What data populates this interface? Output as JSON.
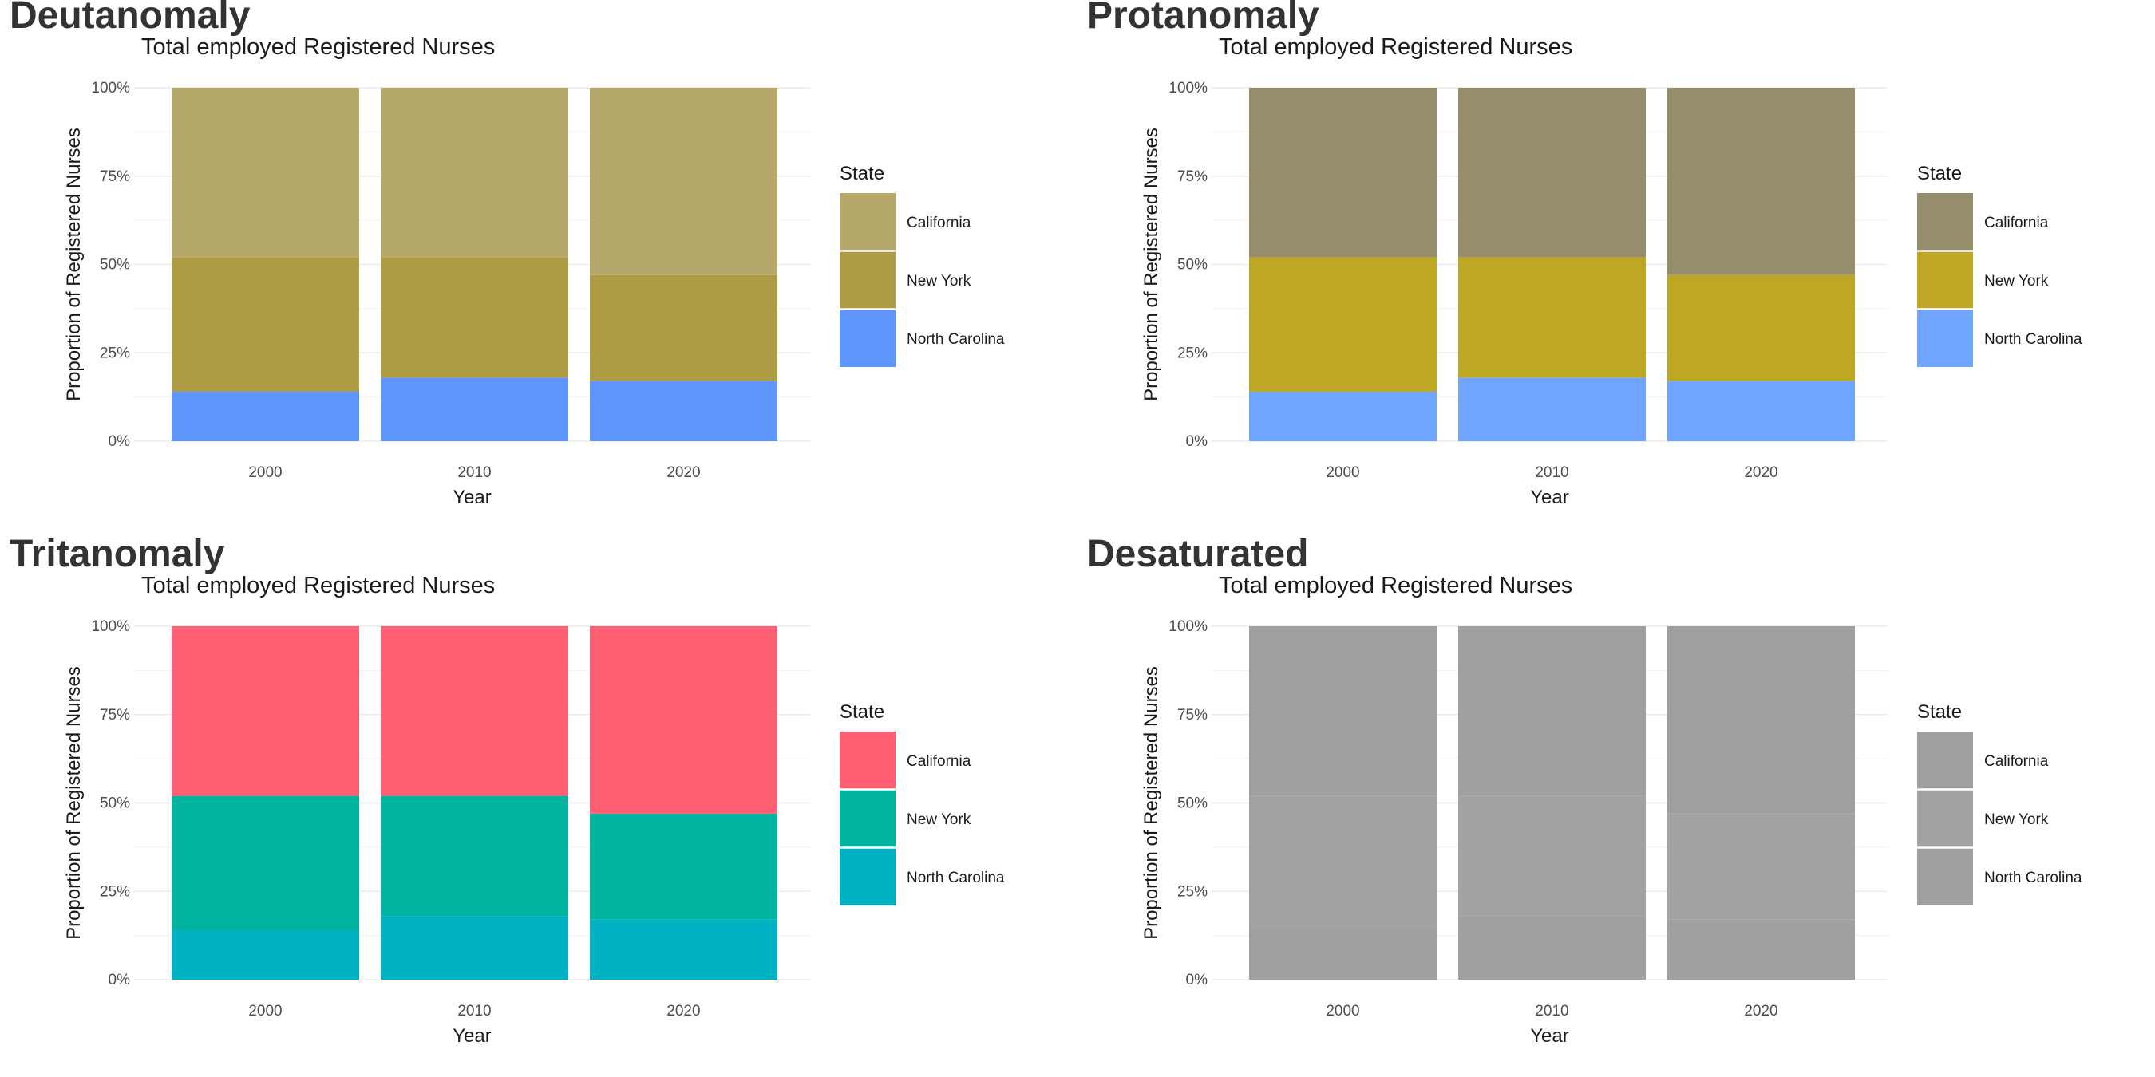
{
  "panels": [
    {
      "heading": "Deutanomaly",
      "colors": {
        "California": "#b6a76b",
        "New York": "#ae9c44",
        "North Carolina": "#5f96fd"
      },
      "chart_data": {
        "type": "bar",
        "title": "Total employed Registered Nurses",
        "xlabel": "Year",
        "ylabel": "Proportion of Registered Nurses",
        "categories": [
          "2000",
          "2010",
          "2020"
        ],
        "ylim": [
          0,
          1
        ],
        "yticks": [
          "0%",
          "25%",
          "50%",
          "75%",
          "100%"
        ],
        "stacked": true,
        "legend_title": "State",
        "legend_position": "right",
        "grid": true,
        "series": [
          {
            "name": "California",
            "values": [
              0.48,
              0.48,
              0.53
            ]
          },
          {
            "name": "New York",
            "values": [
              0.38,
              0.34,
              0.3
            ]
          },
          {
            "name": "North Carolina",
            "values": [
              0.14,
              0.18,
              0.17
            ]
          }
        ]
      }
    },
    {
      "heading": "Protanomaly",
      "colors": {
        "California": "#968d6b",
        "New York": "#bea823",
        "North Carolina": "#6fa5ff"
      },
      "chart_data": {
        "type": "bar",
        "title": "Total employed Registered Nurses",
        "xlabel": "Year",
        "ylabel": "Proportion of Registered Nurses",
        "categories": [
          "2000",
          "2010",
          "2020"
        ],
        "ylim": [
          0,
          1
        ],
        "yticks": [
          "0%",
          "25%",
          "50%",
          "75%",
          "100%"
        ],
        "stacked": true,
        "legend_title": "State",
        "legend_position": "right",
        "grid": true,
        "series": [
          {
            "name": "California",
            "values": [
              0.48,
              0.48,
              0.53
            ]
          },
          {
            "name": "New York",
            "values": [
              0.38,
              0.34,
              0.3
            ]
          },
          {
            "name": "North Carolina",
            "values": [
              0.14,
              0.18,
              0.17
            ]
          }
        ]
      }
    },
    {
      "heading": "Tritanomaly",
      "colors": {
        "California": "#ff5f73",
        "New York": "#00b39e",
        "North Carolina": "#00b1c3"
      },
      "chart_data": {
        "type": "bar",
        "title": "Total employed Registered Nurses",
        "xlabel": "Year",
        "ylabel": "Proportion of Registered Nurses",
        "categories": [
          "2000",
          "2010",
          "2020"
        ],
        "ylim": [
          0,
          1
        ],
        "yticks": [
          "0%",
          "25%",
          "50%",
          "75%",
          "100%"
        ],
        "stacked": true,
        "legend_title": "State",
        "legend_position": "right",
        "grid": true,
        "series": [
          {
            "name": "California",
            "values": [
              0.48,
              0.48,
              0.53
            ]
          },
          {
            "name": "New York",
            "values": [
              0.38,
              0.34,
              0.3
            ]
          },
          {
            "name": "North Carolina",
            "values": [
              0.14,
              0.18,
              0.17
            ]
          }
        ]
      }
    },
    {
      "heading": "Desaturated",
      "colors": {
        "California": "#9f9f9f",
        "New York": "#a3a3a3",
        "North Carolina": "#a0a0a0"
      },
      "chart_data": {
        "type": "bar",
        "title": "Total employed Registered Nurses",
        "xlabel": "Year",
        "ylabel": "Proportion of Registered Nurses",
        "categories": [
          "2000",
          "2010",
          "2020"
        ],
        "ylim": [
          0,
          1
        ],
        "yticks": [
          "0%",
          "25%",
          "50%",
          "75%",
          "100%"
        ],
        "stacked": true,
        "legend_title": "State",
        "legend_position": "right",
        "grid": true,
        "series": [
          {
            "name": "California",
            "values": [
              0.48,
              0.48,
              0.53
            ]
          },
          {
            "name": "New York",
            "values": [
              0.38,
              0.34,
              0.3
            ]
          },
          {
            "name": "North Carolina",
            "values": [
              0.14,
              0.18,
              0.17
            ]
          }
        ]
      }
    }
  ]
}
